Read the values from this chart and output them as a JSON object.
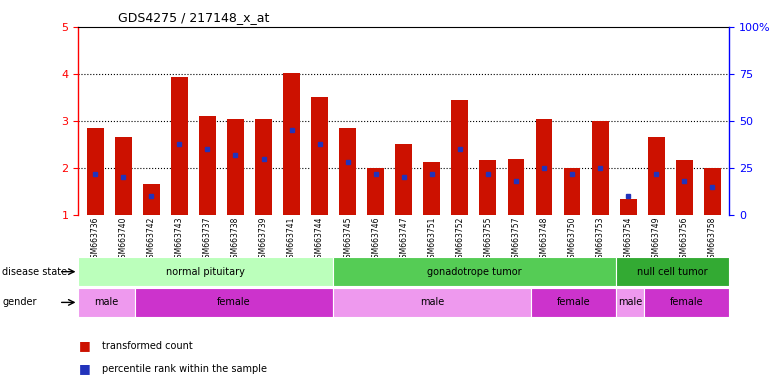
{
  "title": "GDS4275 / 217148_x_at",
  "samples": [
    "GSM663736",
    "GSM663740",
    "GSM663742",
    "GSM663743",
    "GSM663737",
    "GSM663738",
    "GSM663739",
    "GSM663741",
    "GSM663744",
    "GSM663745",
    "GSM663746",
    "GSM663747",
    "GSM663751",
    "GSM663752",
    "GSM663755",
    "GSM663757",
    "GSM663748",
    "GSM663750",
    "GSM663753",
    "GSM663754",
    "GSM663749",
    "GSM663756",
    "GSM663758"
  ],
  "transformed_count": [
    2.85,
    2.65,
    1.65,
    3.93,
    3.1,
    3.05,
    3.05,
    4.02,
    3.5,
    2.85,
    2.0,
    2.52,
    2.12,
    3.45,
    2.17,
    2.2,
    3.05,
    2.0,
    3.0,
    1.35,
    2.65,
    2.18,
    2.0
  ],
  "percentile_rank_val": [
    1.88,
    1.8,
    1.4,
    2.52,
    2.4,
    2.28,
    2.2,
    2.8,
    2.52,
    2.12,
    1.88,
    1.8,
    1.88,
    2.4,
    1.88,
    1.72,
    2.0,
    1.88,
    2.0,
    1.4,
    1.88,
    1.72,
    1.6
  ],
  "bar_color": "#cc1100",
  "dot_color": "#2233bb",
  "ylim_left": [
    1,
    5
  ],
  "ylim_right": [
    0,
    100
  ],
  "yticks_left": [
    1,
    2,
    3,
    4,
    5
  ],
  "yticks_right": [
    0,
    25,
    50,
    75,
    100
  ],
  "disease_state_groups": [
    {
      "label": "normal pituitary",
      "start": 0,
      "end": 9,
      "color": "#bbffbb"
    },
    {
      "label": "gonadotrope tumor",
      "start": 9,
      "end": 19,
      "color": "#55cc55"
    },
    {
      "label": "null cell tumor",
      "start": 19,
      "end": 23,
      "color": "#33aa33"
    }
  ],
  "gender_groups": [
    {
      "label": "male",
      "start": 0,
      "end": 2,
      "color": "#ee99ee"
    },
    {
      "label": "female",
      "start": 2,
      "end": 9,
      "color": "#cc33cc"
    },
    {
      "label": "male",
      "start": 9,
      "end": 16,
      "color": "#ee99ee"
    },
    {
      "label": "female",
      "start": 16,
      "end": 19,
      "color": "#cc33cc"
    },
    {
      "label": "male",
      "start": 19,
      "end": 20,
      "color": "#ee99ee"
    },
    {
      "label": "female",
      "start": 20,
      "end": 23,
      "color": "#cc33cc"
    }
  ],
  "legend_labels": [
    "transformed count",
    "percentile rank within the sample"
  ],
  "background_color": "#ffffff",
  "n_samples": 23
}
